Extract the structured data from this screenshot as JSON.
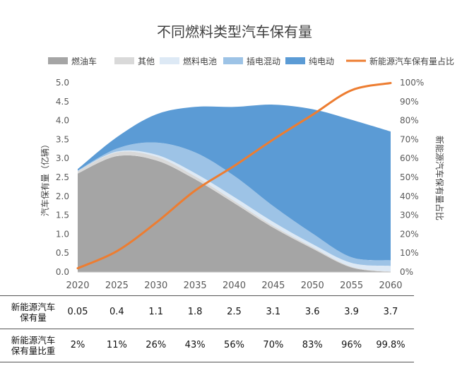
{
  "colors": {
    "gasoline": "#a5a5a5",
    "other": "#d9d9d9",
    "fuel_cell": "#dde9f5",
    "phev": "#9dc3e6",
    "bev": "#5b9bd5",
    "nev_share": "#ed7d31",
    "axis_text": "#595959"
  },
  "chart_data": {
    "type": "area",
    "title": "不同燃料类型汽车保有量",
    "y_left_label": "汽车保有量（亿辆）",
    "y_right_label": "新能源汽车保有量占比",
    "x": [
      2020,
      2025,
      2030,
      2035,
      2040,
      2045,
      2050,
      2055,
      2060
    ],
    "x_ticks": [
      "2020",
      "2025",
      "2030",
      "2035",
      "2040",
      "2045",
      "2050",
      "2055",
      "2060"
    ],
    "y_left_ticks": [
      "0.0",
      "0.5",
      "1.0",
      "1.5",
      "2.0",
      "2.5",
      "3.0",
      "3.5",
      "4.0",
      "4.5",
      "5.0"
    ],
    "y_right_ticks": [
      "0%",
      "10%",
      "20%",
      "30%",
      "40%",
      "50%",
      "60%",
      "70%",
      "80%",
      "90%",
      "100%"
    ],
    "ylim_left": [
      0,
      5
    ],
    "ylim_right": [
      0,
      1
    ],
    "legend_position": "top",
    "series": [
      {
        "name": "燃油车",
        "kind": "area",
        "color_key": "gasoline",
        "values": [
          2.6,
          3.06,
          2.95,
          2.45,
          1.82,
          1.17,
          0.62,
          0.12,
          0.0
        ]
      },
      {
        "name": "其他",
        "kind": "area",
        "color_key": "other",
        "values": [
          0.07,
          0.1,
          0.1,
          0.08,
          0.06,
          0.05,
          0.04,
          0.02,
          0.01
        ]
      },
      {
        "name": "燃料电池",
        "kind": "area",
        "color_key": "fuel_cell",
        "values": [
          0.0,
          0.02,
          0.05,
          0.08,
          0.1,
          0.1,
          0.08,
          0.1,
          0.15
        ]
      },
      {
        "name": "插电混动",
        "kind": "area",
        "color_key": "phev",
        "values": [
          0.01,
          0.08,
          0.32,
          0.55,
          0.56,
          0.42,
          0.28,
          0.15,
          0.15
        ]
      },
      {
        "name": "纯电动",
        "kind": "area",
        "color_key": "bev",
        "values": [
          0.04,
          0.3,
          0.74,
          1.2,
          1.82,
          2.68,
          3.28,
          3.63,
          3.4
        ]
      },
      {
        "name": "新能源汽车保有量占比",
        "kind": "line",
        "axis": "right",
        "color_key": "nev_share",
        "values": [
          0.02,
          0.11,
          0.26,
          0.43,
          0.56,
          0.7,
          0.83,
          0.96,
          0.998
        ]
      }
    ]
  },
  "table": {
    "rows": [
      {
        "label_lines": [
          "新能源汽车",
          "保有量"
        ],
        "values": [
          "0.05",
          "0.4",
          "1.1",
          "1.8",
          "2.5",
          "3.1",
          "3.6",
          "3.9",
          "3.7"
        ]
      },
      {
        "label_lines": [
          "新能源汽车",
          "保有量比重"
        ],
        "values": [
          "2%",
          "11%",
          "26%",
          "43%",
          "56%",
          "70%",
          "83%",
          "96%",
          "99.8%"
        ]
      }
    ]
  }
}
